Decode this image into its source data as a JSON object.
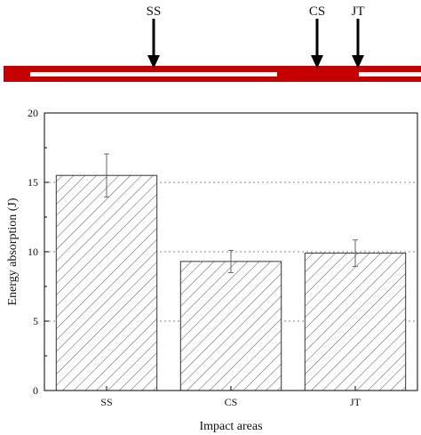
{
  "diagram": {
    "markers": [
      {
        "label": "SS"
      },
      {
        "label": "CS"
      },
      {
        "label": "JT"
      }
    ],
    "colors": {
      "beam": "#c40000",
      "window": "#ffffff",
      "arrow": "#000000"
    }
  },
  "chart_data": {
    "type": "bar",
    "categories": [
      "SS",
      "CS",
      "JT"
    ],
    "values": [
      15.5,
      9.3,
      9.9
    ],
    "errors": [
      1.55,
      0.8,
      0.95
    ],
    "xlabel": "Impact areas",
    "ylabel": "Energy absorption (J)",
    "ylim": [
      0,
      20
    ],
    "yticks": [
      0,
      5,
      10,
      15,
      20
    ],
    "ytick_labels": [
      "0",
      "5",
      "10",
      "15",
      "20"
    ],
    "grid": "horizontal-dotted",
    "bar_fill": "diagonal-hatch",
    "colors": {
      "bar_stroke": "#333333",
      "hatch": "#555555",
      "grid": "#888888",
      "error": "#666666"
    }
  }
}
